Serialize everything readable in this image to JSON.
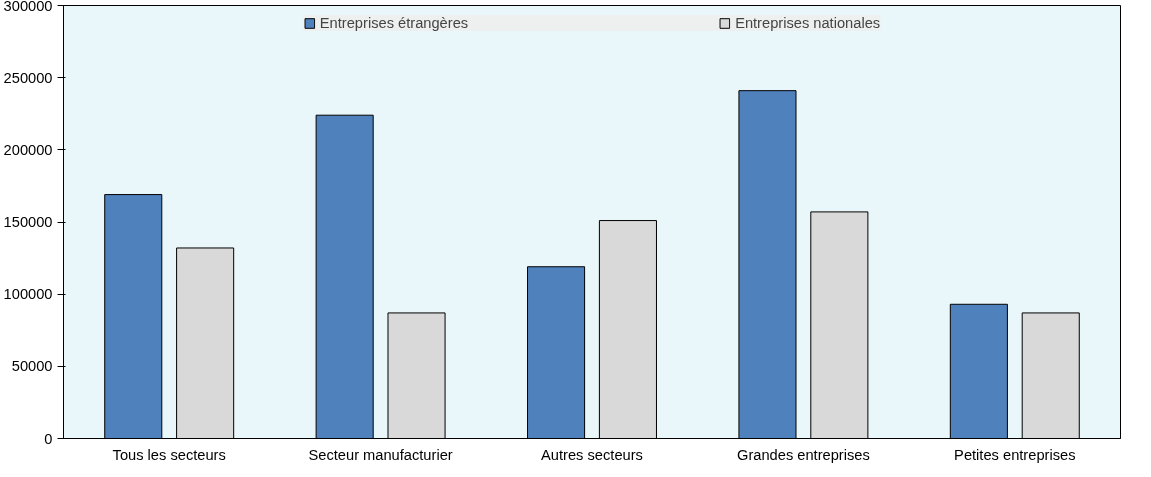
{
  "chart_data": {
    "type": "bar",
    "categories": [
      "Tous les secteurs",
      "Secteur manufacturier",
      "Autres secteurs",
      "Grandes entreprises",
      "Petites entreprises"
    ],
    "series": [
      {
        "name": "Entreprises étrangères",
        "color": "#4f81bd",
        "values": [
          169000,
          224000,
          119000,
          241000,
          93000
        ]
      },
      {
        "name": "Entreprises nationales",
        "color": "#d9d9d9",
        "values": [
          132000,
          87000,
          151000,
          157000,
          87000
        ]
      }
    ],
    "ylim": [
      0,
      300000
    ],
    "yticks": [
      0,
      50000,
      100000,
      150000,
      200000,
      250000,
      300000
    ],
    "grid": false,
    "legend": "top"
  }
}
